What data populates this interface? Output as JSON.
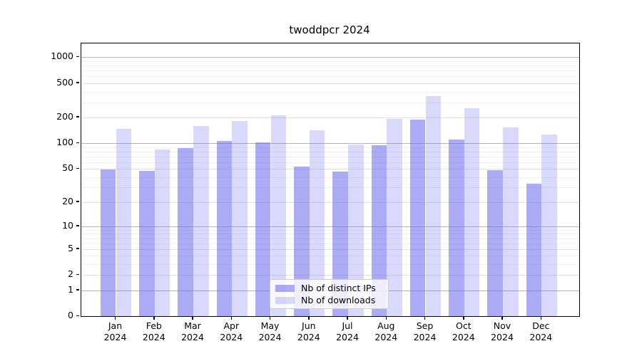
{
  "chart_data": {
    "type": "bar",
    "title": "twoddpcr 2024",
    "categories": [
      "Jan",
      "Feb",
      "Mar",
      "Apr",
      "May",
      "Jun",
      "Jul",
      "Aug",
      "Sep",
      "Oct",
      "Nov",
      "Dec"
    ],
    "category_year": "2024",
    "series": [
      {
        "name": "Nb of distinct IPs",
        "color": "rgba(102,102,238,0.55)",
        "values": [
          49,
          47,
          88,
          107,
          103,
          53,
          46,
          94,
          190,
          111,
          48,
          33
        ]
      },
      {
        "name": "Nb of downloads",
        "color": "rgba(102,102,238,0.25)",
        "values": [
          148,
          85,
          159,
          182,
          213,
          141,
          97,
          192,
          354,
          258,
          153,
          126
        ]
      }
    ],
    "y_axis": {
      "scale": "log10(value+1)",
      "ticks": [
        0,
        1,
        2,
        5,
        10,
        20,
        50,
        100,
        200,
        500,
        1000
      ],
      "decade_ticks": [
        1,
        10,
        100,
        1000
      ],
      "minor_gridlines": [
        3,
        4,
        6,
        7,
        8,
        9,
        30,
        40,
        60,
        70,
        80,
        90,
        300,
        400,
        600,
        700,
        800,
        900
      ],
      "y_max": 1445
    },
    "legend_position": "bottom-center",
    "grid": true
  }
}
